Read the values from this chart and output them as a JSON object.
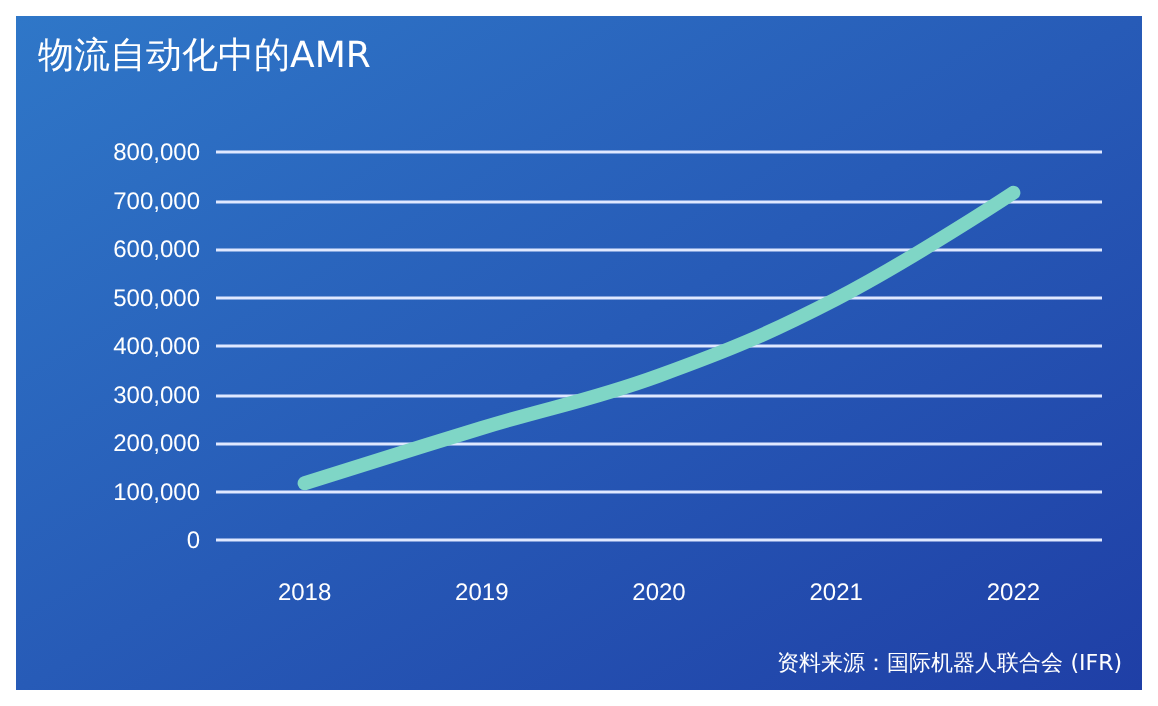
{
  "chart_data": {
    "type": "line",
    "title": "物流自动化中的AMR",
    "categories": [
      "2018",
      "2019",
      "2020",
      "2021",
      "2022"
    ],
    "series": [
      {
        "color": "#7fd6c6",
        "values": [
          117000,
          231000,
          339000,
          497000,
          716000
        ]
      }
    ],
    "ylim": [
      0,
      800000
    ],
    "yticks": [
      0,
      {
        "value": 100000,
        "label": "100,000"
      },
      {
        "value": 200000,
        "label": "200,000"
      },
      {
        "value": 300000,
        "label": "300,000"
      },
      {
        "value": 400000,
        "label": "400,000"
      },
      {
        "value": 500000,
        "label": "500,000"
      },
      {
        "value": 600000,
        "label": "600,000"
      },
      {
        "value": 700000,
        "label": "700,000"
      },
      {
        "value": 800000,
        "label": "800,000"
      }
    ],
    "grid": "y",
    "annotations": [
      "资料来源：国际机器人联合会 (IFR)"
    ]
  }
}
